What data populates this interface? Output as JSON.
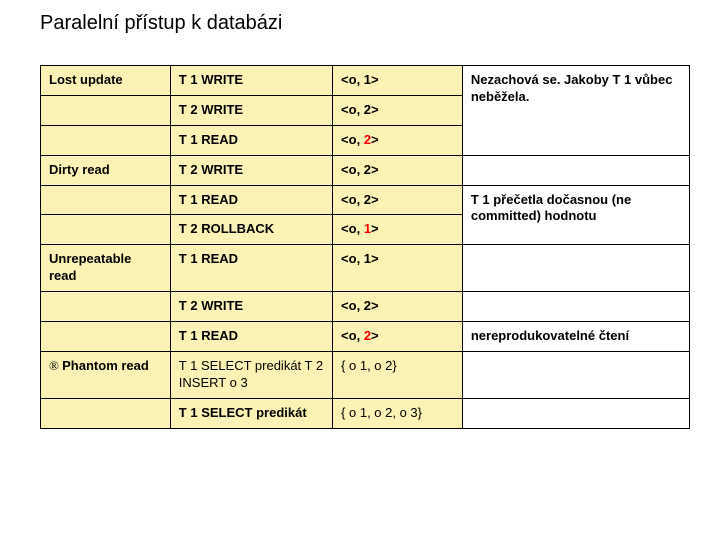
{
  "title": "Paralelní přístup k databázi",
  "table": {
    "background_color": "#fbf3b5",
    "border_color": "#000000",
    "columns": [
      {
        "width": "20%"
      },
      {
        "width": "25%"
      },
      {
        "width": "20%"
      },
      {
        "width": "35%"
      }
    ],
    "col4_special_background": "#ffffff",
    "rows": [
      {
        "cells": [
          {
            "text": "Lost update",
            "bold": true
          },
          {
            "text": "T 1 WRITE",
            "bold": true
          },
          {
            "parts": [
              {
                "t": "<o, 1>",
                "bold": true
              }
            ]
          },
          {
            "text": "Nezachová se. Jakoby T 1 vůbec neběžela.",
            "bold": true,
            "rowspan": 3,
            "white_bg": true
          }
        ]
      },
      {
        "cells": [
          {
            "text": ""
          },
          {
            "text": "T 2 WRITE",
            "bold": true
          },
          {
            "parts": [
              {
                "t": "<o, 2>",
                "bold": true
              }
            ]
          }
        ]
      },
      {
        "cells": [
          {
            "text": ""
          },
          {
            "text": "T 1 READ",
            "bold": true
          },
          {
            "parts": [
              {
                "t": "<o, ",
                "bold": true
              },
              {
                "t": "2",
                "red": true
              },
              {
                "t": ">",
                "bold": true
              }
            ]
          }
        ]
      },
      {
        "cells": [
          {
            "text": "Dirty read",
            "bold": true
          },
          {
            "text": "T 2 WRITE",
            "bold": true
          },
          {
            "parts": [
              {
                "t": "<o, 2>",
                "bold": true
              }
            ]
          },
          {
            "text": "",
            "white_bg": true
          }
        ]
      },
      {
        "cells": [
          {
            "text": ""
          },
          {
            "text": "T 1 READ",
            "bold": true
          },
          {
            "parts": [
              {
                "t": "<o, 2>",
                "bold": true
              }
            ]
          },
          {
            "text": "T 1 přečetla dočasnou (ne committed) hodnotu",
            "bold": true,
            "rowspan": 2,
            "white_bg": true
          }
        ]
      },
      {
        "cells": [
          {
            "text": ""
          },
          {
            "text": "T 2 ROLLBACK",
            "bold": true
          },
          {
            "parts": [
              {
                "t": "<o, ",
                "bold": true
              },
              {
                "t": "1",
                "red": true
              },
              {
                "t": ">",
                "bold": true
              }
            ]
          }
        ]
      },
      {
        "cells": [
          {
            "text": "Unrepeatable read",
            "bold": true
          },
          {
            "text": "T 1 READ",
            "bold": true
          },
          {
            "parts": [
              {
                "t": "<o, 1>",
                "bold": true
              }
            ]
          },
          {
            "text": "",
            "white_bg": true
          }
        ]
      },
      {
        "cells": [
          {
            "text": ""
          },
          {
            "text": "T 2 WRITE",
            "bold": true
          },
          {
            "parts": [
              {
                "t": "<o, 2>",
                "bold": true
              }
            ]
          },
          {
            "text": "",
            "white_bg": true
          }
        ]
      },
      {
        "cells": [
          {
            "text": ""
          },
          {
            "text": "T 1 READ",
            "bold": true
          },
          {
            "parts": [
              {
                "t": "<o, ",
                "bold": true
              },
              {
                "t": "2",
                "red": true
              },
              {
                "t": ">",
                "bold": true
              }
            ]
          },
          {
            "text": "nereprodukovatelné čtení",
            "bold": true,
            "white_bg": true
          }
        ]
      },
      {
        "cells": [
          {
            "parts": [
              {
                "t": "® ",
                "arrow": true
              },
              {
                "t": "Phantom read",
                "bold": true
              }
            ]
          },
          {
            "text": "T 1 SELECT predikát T 2 INSERT o 3"
          },
          {
            "text": "{ o 1, o 2}"
          },
          {
            "text": "",
            "white_bg": true
          }
        ]
      },
      {
        "cells": [
          {
            "text": ""
          },
          {
            "text": "T 1 SELECT predikát",
            "bold": true
          },
          {
            "text": "{ o 1, o 2, o 3}"
          },
          {
            "text": "",
            "white_bg": true
          }
        ]
      }
    ]
  }
}
